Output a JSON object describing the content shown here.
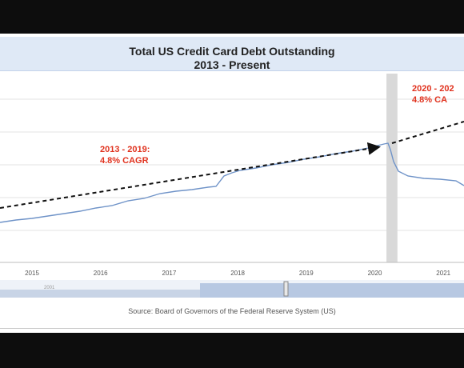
{
  "chart_data": {
    "type": "line",
    "title": "Total US Credit Card Debt Outstanding",
    "subtitle": "2013 - Present",
    "source": "Source: Board of Governors of the Federal Reserve System (US)",
    "x_ticks": [
      "2015",
      "2016",
      "2017",
      "2018",
      "2019",
      "2020",
      "2021"
    ],
    "navigator_label": "2001",
    "colors": {
      "line": "#6f93c8",
      "trend": "#111111",
      "annotation": "#e0321e",
      "shade": "#d9d9d9"
    },
    "annotations": [
      {
        "id": "pre-covid",
        "lines": [
          "2013 - 2019:",
          "4.8% CAGR"
        ]
      },
      {
        "id": "post-covid",
        "lines": [
          "2020 - 202",
          "4.8% CA"
        ]
      }
    ],
    "recession_shade": {
      "from": 2020.17,
      "to": 2020.33
    },
    "grid": true
  }
}
